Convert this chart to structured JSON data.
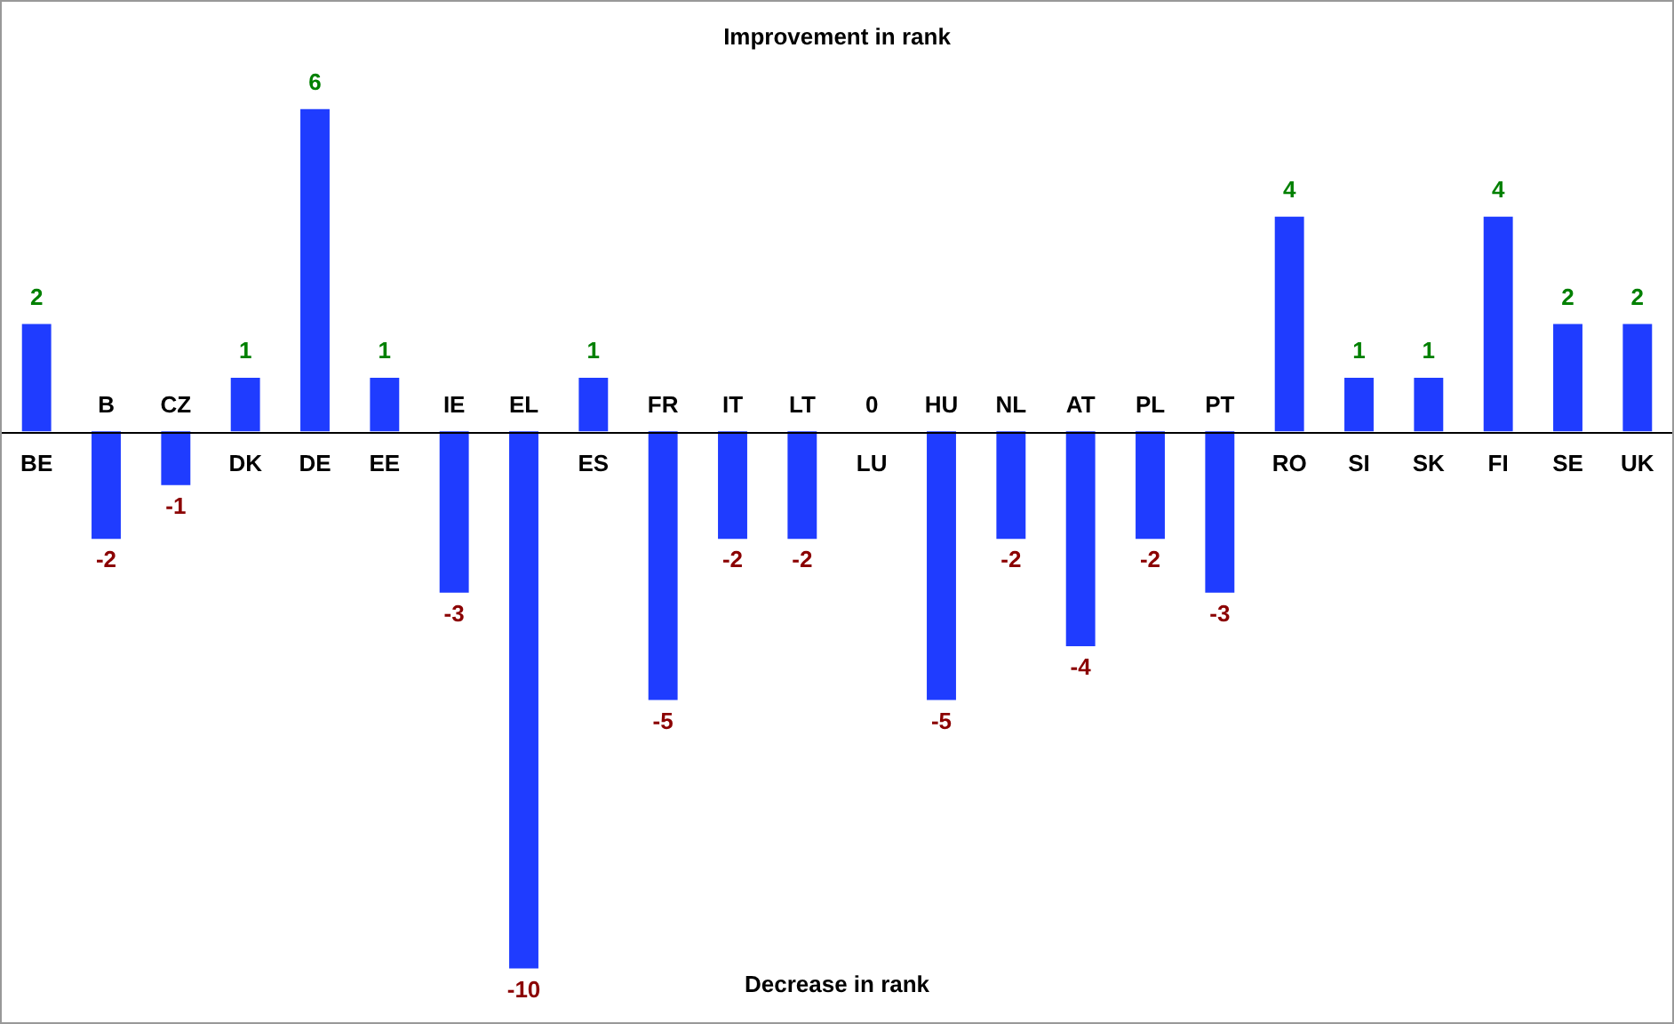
{
  "chart_data": {
    "type": "bar",
    "categories": [
      "BE",
      "B",
      "CZ",
      "DK",
      "DE",
      "EE",
      "IE",
      "EL",
      "ES",
      "FR",
      "IT",
      "LT",
      "LU",
      "HU",
      "NL",
      "AT",
      "PL",
      "PT",
      "RO",
      "SI",
      "SK",
      "FI",
      "SE",
      "UK"
    ],
    "values": [
      2,
      -2,
      -1,
      1,
      6,
      1,
      -3,
      -10,
      1,
      -5,
      -2,
      -2,
      0,
      -5,
      -2,
      -4,
      -2,
      -3,
      4,
      1,
      1,
      4,
      2,
      2
    ],
    "color": "#1f3cff",
    "ylim": [
      -11,
      8
    ],
    "data_labels": true,
    "legend": false,
    "annotations": [
      "Improvement in rank",
      "Decrease in rank"
    ]
  }
}
